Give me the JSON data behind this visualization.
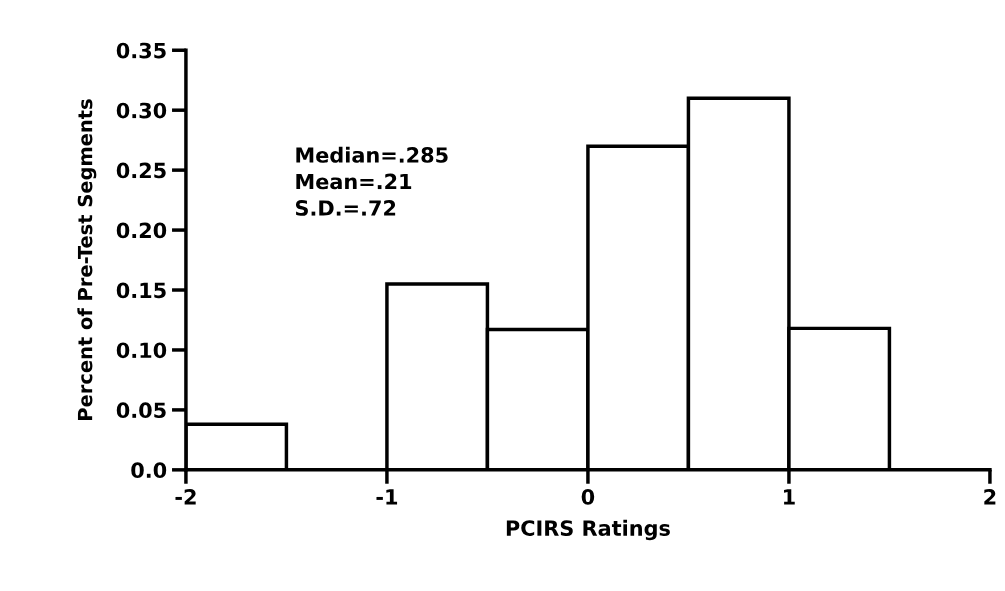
{
  "chart_data": {
    "type": "histogram",
    "xlabel": "PCIRS Ratings",
    "ylabel": "Percent of Pre-Test Segments",
    "bins": [
      -2,
      -1.5,
      -1,
      -0.5,
      0,
      0.5,
      1,
      1.5
    ],
    "values": [
      0.038,
      0,
      0.155,
      0.117,
      0.27,
      0.31,
      0.118
    ],
    "color": "#ffffff",
    "xlim": [
      -2,
      2
    ],
    "xticks": [
      -2,
      -1,
      0,
      1,
      2
    ],
    "ylim": [
      0,
      0.35
    ],
    "yticks": [
      {
        "value": 0,
        "label": "0.0"
      },
      0.05,
      {
        "value": 0.1,
        "label": "0.10"
      },
      0.15,
      {
        "value": 0.2,
        "label": "0.20"
      },
      0.25,
      {
        "value": 0.3,
        "label": "0.30"
      },
      0.35
    ],
    "annotations": [
      "Median=.285",
      "Mean=.21",
      "S.D.=.72"
    ],
    "grid": false,
    "legend": false
  }
}
